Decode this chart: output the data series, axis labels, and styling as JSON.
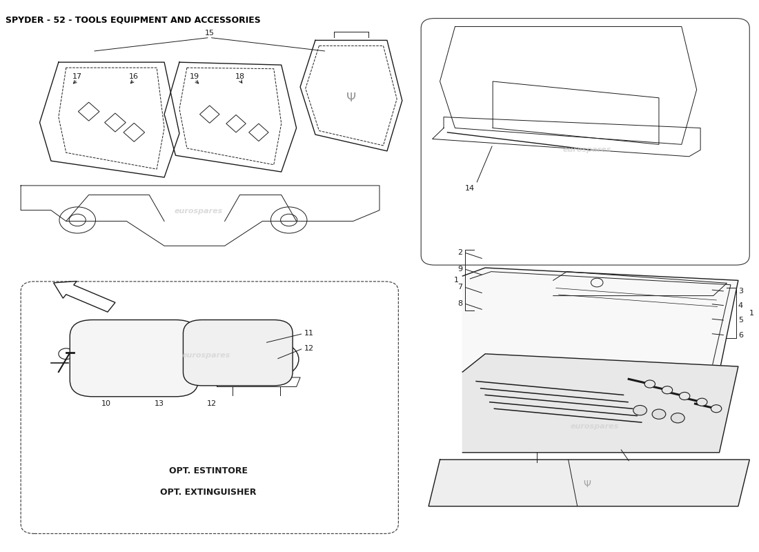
{
  "title": "SPYDER - 52 - TOOLS EQUIPMENT AND ACCESSORIES",
  "title_fontsize": 9,
  "title_color": "#000000",
  "background_color": "#ffffff",
  "line_color": "#1a1a1a",
  "watermark_color": "#cccccc",
  "watermark_text": "eurospares",
  "caption_line1": "OPT. ESTINTORE",
  "caption_line2": "OPT. EXTINGUISHER"
}
